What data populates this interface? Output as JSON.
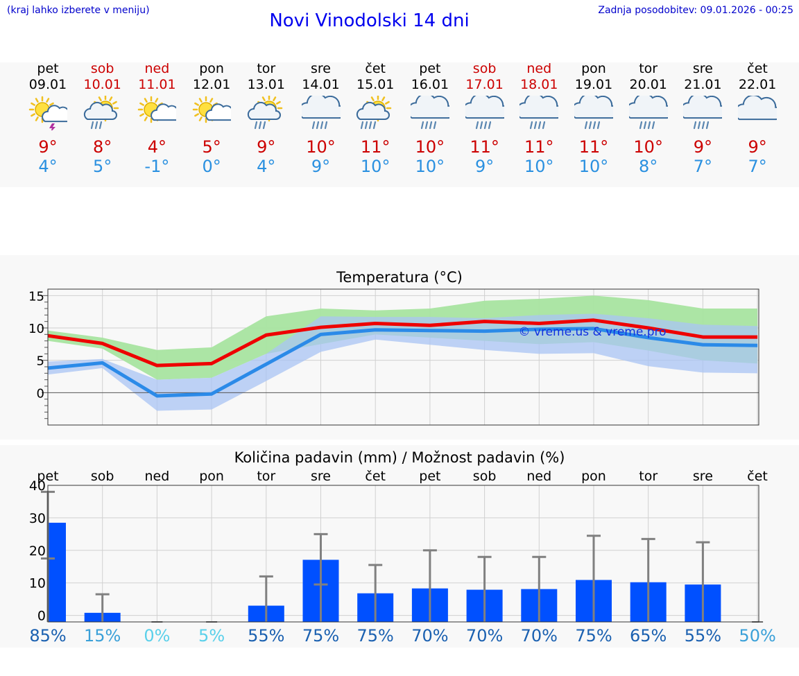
{
  "header": {
    "menu_hint": "(kraj lahko izberete v meniju)",
    "title": "Novi Vinodolski 14 dni",
    "updated": "Zadnja posodobitev: 09.01.2026 - 00:25"
  },
  "days": [
    {
      "name": "pet",
      "date": "09.01",
      "max": "9°",
      "min": "4°",
      "weekend": false,
      "icon": "sun-cloud-thunder-icon"
    },
    {
      "name": "sob",
      "date": "10.01",
      "max": "8°",
      "min": "5°",
      "weekend": true,
      "icon": "sun-cloud-rain-icon"
    },
    {
      "name": "ned",
      "date": "11.01",
      "max": "4°",
      "min": "-1°",
      "weekend": true,
      "icon": "sun-cloud-icon"
    },
    {
      "name": "pon",
      "date": "12.01",
      "max": "5°",
      "min": "0°",
      "weekend": false,
      "icon": "sun-cloud-icon"
    },
    {
      "name": "tor",
      "date": "13.01",
      "max": "9°",
      "min": "4°",
      "weekend": false,
      "icon": "sun-cloud-rain-icon"
    },
    {
      "name": "sre",
      "date": "14.01",
      "max": "10°",
      "min": "9°",
      "weekend": false,
      "icon": "rain-cloud-icon"
    },
    {
      "name": "čet",
      "date": "15.01",
      "max": "11°",
      "min": "10°",
      "weekend": false,
      "icon": "sun-cloud-heavy-rain-icon"
    },
    {
      "name": "pet",
      "date": "16.01",
      "max": "10°",
      "min": "10°",
      "weekend": false,
      "icon": "rain-cloud-icon"
    },
    {
      "name": "sob",
      "date": "17.01",
      "max": "11°",
      "min": "9°",
      "weekend": true,
      "icon": "rain-cloud-icon"
    },
    {
      "name": "ned",
      "date": "18.01",
      "max": "11°",
      "min": "10°",
      "weekend": true,
      "icon": "rain-cloud-icon"
    },
    {
      "name": "pon",
      "date": "19.01",
      "max": "11°",
      "min": "10°",
      "weekend": false,
      "icon": "rain-cloud-icon"
    },
    {
      "name": "tor",
      "date": "20.01",
      "max": "10°",
      "min": "8°",
      "weekend": false,
      "icon": "rain-cloud-icon"
    },
    {
      "name": "sre",
      "date": "21.01",
      "max": "9°",
      "min": "7°",
      "weekend": false,
      "icon": "rain-cloud-icon"
    },
    {
      "name": "čet",
      "date": "22.01",
      "max": "9°",
      "min": "7°",
      "weekend": false,
      "icon": "cloud-icon"
    }
  ],
  "chart_data": [
    {
      "type": "line",
      "title": "Temperatura (°C)",
      "ylim": [
        -5,
        16
      ],
      "yticks": [
        "15",
        "10",
        "5",
        "0"
      ],
      "watermark": "© vreme.us & vreme.pro",
      "series": [
        {
          "name": "max",
          "color": "#ee0000",
          "values": [
            8.8,
            7.6,
            4.2,
            4.5,
            8.9,
            10.1,
            10.7,
            10.4,
            11.0,
            10.7,
            11.2,
            10.0,
            8.6,
            8.6
          ]
        },
        {
          "name": "min",
          "color": "#2b8ae8",
          "values": [
            3.8,
            4.6,
            -0.5,
            -0.2,
            4.4,
            9.0,
            9.7,
            9.6,
            9.5,
            9.8,
            9.9,
            8.5,
            7.4,
            7.3
          ]
        },
        {
          "name": "max-range",
          "color": "#a8e4a0",
          "low": [
            8.0,
            6.8,
            2.0,
            2.3,
            6.0,
            7.5,
            9.0,
            8.5,
            8.0,
            7.5,
            7.8,
            6.5,
            5.0,
            4.5
          ],
          "high": [
            9.6,
            8.5,
            6.6,
            7.0,
            11.8,
            13.0,
            12.7,
            13.0,
            14.2,
            14.5,
            15.0,
            14.3,
            13.0,
            13.0
          ]
        },
        {
          "name": "min-range",
          "color": "#aac4f4",
          "low": [
            2.8,
            3.8,
            -2.8,
            -2.6,
            1.8,
            6.3,
            8.2,
            7.4,
            6.6,
            6.0,
            6.1,
            4.1,
            3.1,
            3.0
          ],
          "high": [
            4.8,
            5.2,
            2.0,
            2.3,
            6.0,
            11.8,
            11.7,
            11.7,
            11.5,
            12.0,
            12.2,
            11.5,
            10.5,
            10.3
          ]
        }
      ]
    },
    {
      "type": "bar",
      "title": "Količina padavin (mm) / Možnost padavin (%)",
      "categories": [
        "pet",
        "sob",
        "ned",
        "pon",
        "tor",
        "sre",
        "čet",
        "pet",
        "sob",
        "ned",
        "pon",
        "tor",
        "sre",
        "čet"
      ],
      "ylim": [
        -2,
        40
      ],
      "yticks": [
        "40",
        "30",
        "20",
        "10",
        "0"
      ],
      "values": [
        28.5,
        0.8,
        0,
        0,
        3.0,
        17.1,
        6.8,
        8.3,
        7.9,
        8.1,
        10.9,
        10.2,
        9.5,
        0
      ],
      "error_high": [
        38,
        6.5,
        0,
        0,
        12,
        25,
        15.5,
        20,
        18,
        18,
        24.5,
        23.5,
        22.5,
        0
      ],
      "error_low": [
        17.5,
        0,
        0,
        0,
        0,
        9.5,
        0,
        0,
        0,
        0,
        0,
        0,
        0,
        0
      ],
      "probability": [
        "85%",
        "15%",
        "0%",
        "5%",
        "55%",
        "75%",
        "75%",
        "70%",
        "70%",
        "70%",
        "75%",
        "65%",
        "55%",
        "50%"
      ],
      "probability_colors": [
        "#1a60b0",
        "#3aa0d8",
        "#5ad0ea",
        "#5ad0ea",
        "#1a60b0",
        "#1a60b0",
        "#1a60b0",
        "#1a60b0",
        "#1a60b0",
        "#1a60b0",
        "#1a60b0",
        "#1a60b0",
        "#1a60b0",
        "#3aa0d8"
      ]
    }
  ]
}
